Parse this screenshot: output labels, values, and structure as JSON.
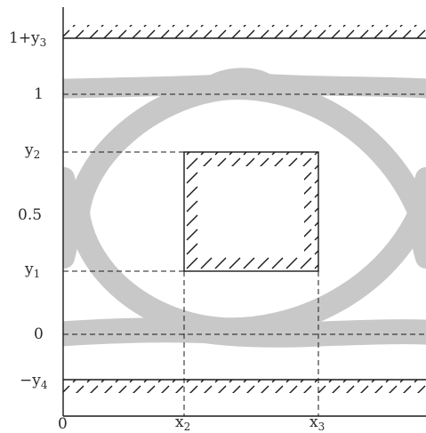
{
  "y_labels": {
    "top_bound": "1+y",
    "top_bound_sub": "3",
    "one": "1",
    "y2": "y",
    "y2_sub": "2",
    "half": "0.5",
    "y1": "y",
    "y1_sub": "1",
    "zero": "0",
    "bottom_bound": "−y",
    "bottom_bound_sub": "4"
  },
  "x_labels": {
    "origin": "0",
    "x2": "x",
    "x2_sub": "2",
    "x3": "x",
    "x3_sub": "3"
  },
  "colors": {
    "eye_band": "#c8c8c8",
    "line": "#1a1a1a",
    "background": "#ffffff"
  }
}
